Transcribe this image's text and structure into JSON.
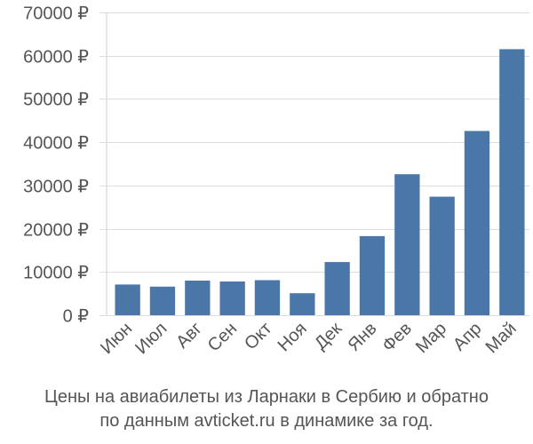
{
  "chart_data": {
    "type": "bar",
    "categories": [
      "Июн",
      "Июл",
      "Авг",
      "Сен",
      "Окт",
      "Ноя",
      "Дек",
      "Янв",
      "Фев",
      "Мар",
      "Апр",
      "Май"
    ],
    "values": [
      7100,
      6600,
      8000,
      7800,
      8100,
      5100,
      12300,
      18300,
      32600,
      27400,
      42600,
      61500
    ],
    "ylim": [
      0,
      70000
    ],
    "yticks": [
      0,
      10000,
      20000,
      30000,
      40000,
      50000,
      60000,
      70000
    ],
    "ytick_labels": [
      "0 ₽",
      "10000 ₽",
      "20000 ₽",
      "30000 ₽",
      "40000 ₽",
      "50000 ₽",
      "60000 ₽",
      "70000 ₽"
    ],
    "bar_color": "#4a76a8",
    "grid": "horizontal",
    "caption": [
      "Цены на авиабилеты из Ларнаки в Сербию и обратно",
      "по данным avticket.ru в динамике за год."
    ]
  }
}
